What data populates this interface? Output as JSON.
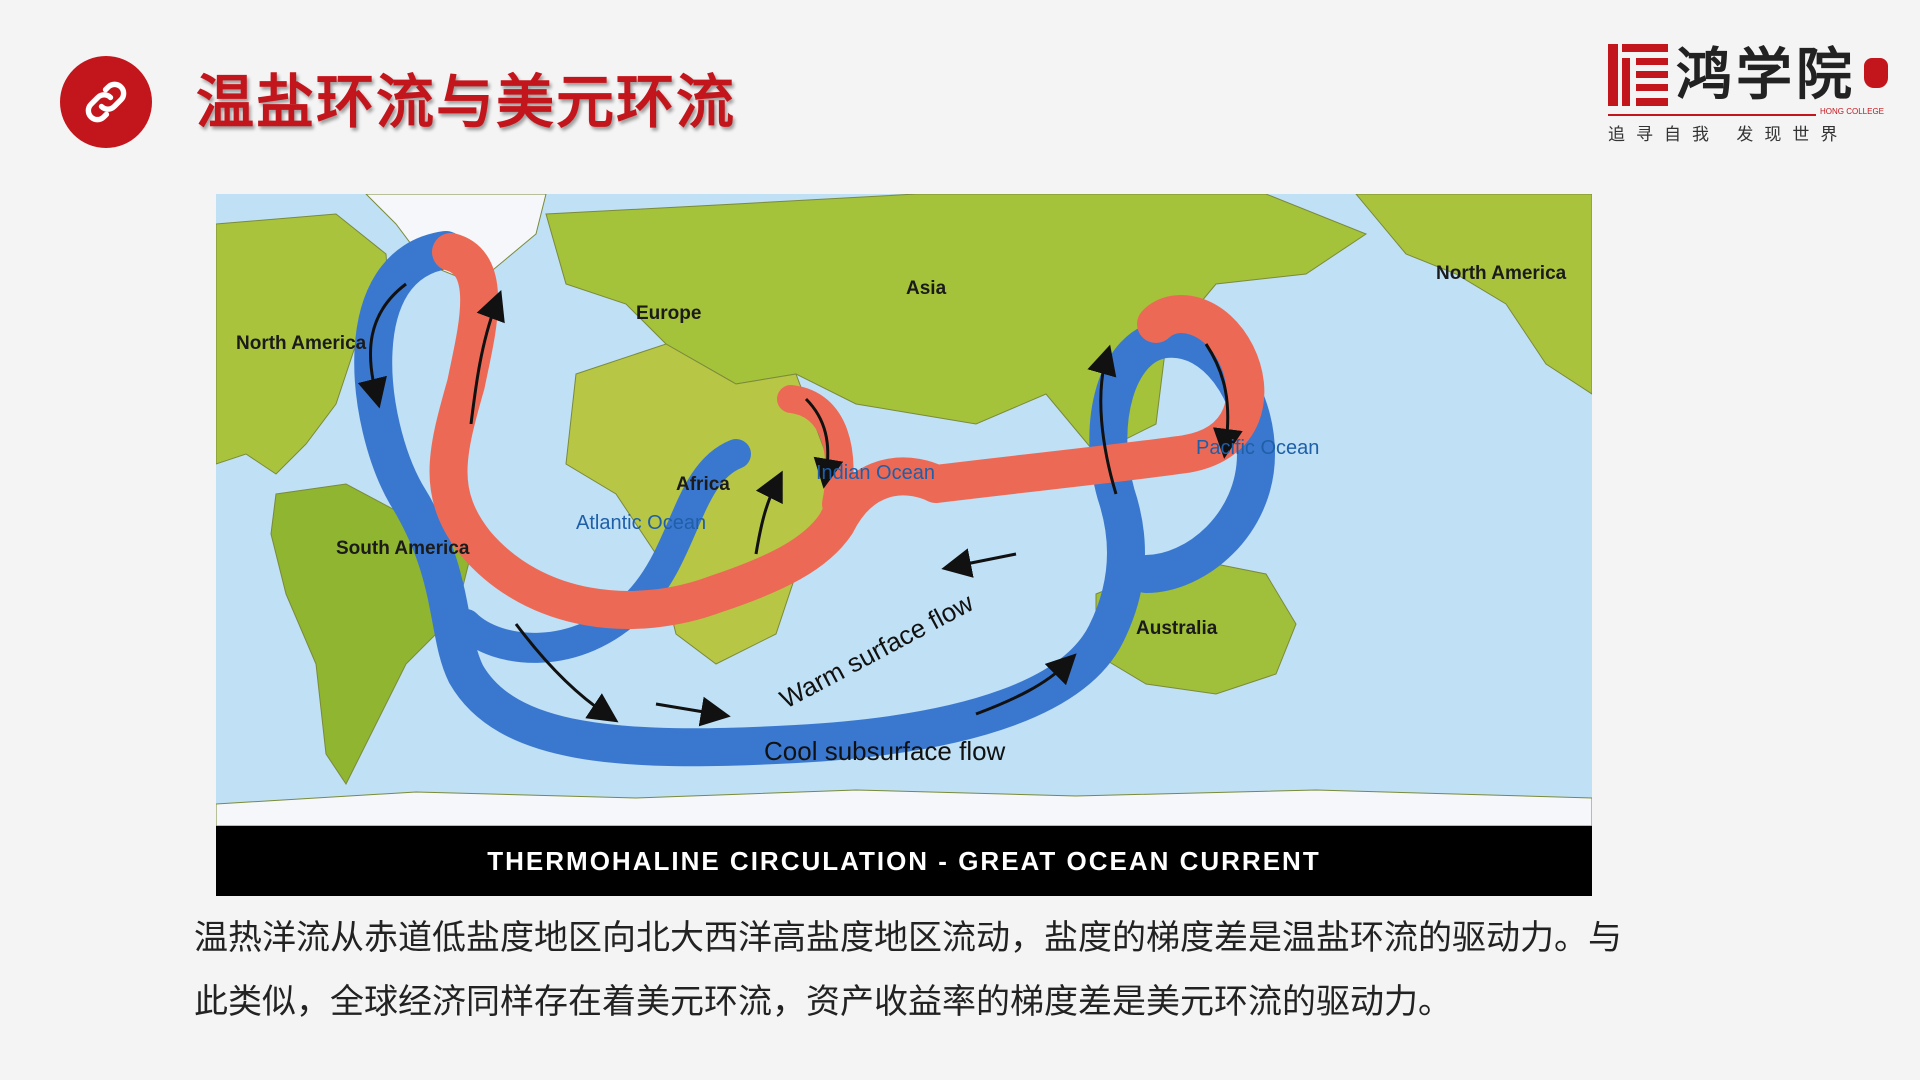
{
  "header": {
    "title": "温盐环流与美元环流",
    "icon": "link-icon",
    "accent_color": "#c3161c"
  },
  "logo": {
    "name": "鸿学院",
    "subtitle": "HONG COLLEGE",
    "slogan": "追寻自我 发现世界"
  },
  "figure": {
    "banner": "THERMOHALINE CIRCULATION - GREAT OCEAN CURRENT",
    "continents": [
      "North America",
      "Europe",
      "Asia",
      "Africa",
      "South America",
      "Australia",
      "North America"
    ],
    "oceans": [
      "Atlantic Ocean",
      "Indian Ocean",
      "Pacific Ocean"
    ],
    "warm_flow_label": "Warm surface flow",
    "cool_flow_label": "Cool subsurface flow",
    "warm_color": "#ec6a55",
    "cool_color": "#3a78cf",
    "ocean_color": "#bfe0f5"
  },
  "caption": "温热洋流从赤道低盐度地区向北大西洋高盐度地区流动，盐度的梯度差是温盐环流的驱动力。与此类似，全球经济同样存在着美元环流，资产收益率的梯度差是美元环流的驱动力。"
}
